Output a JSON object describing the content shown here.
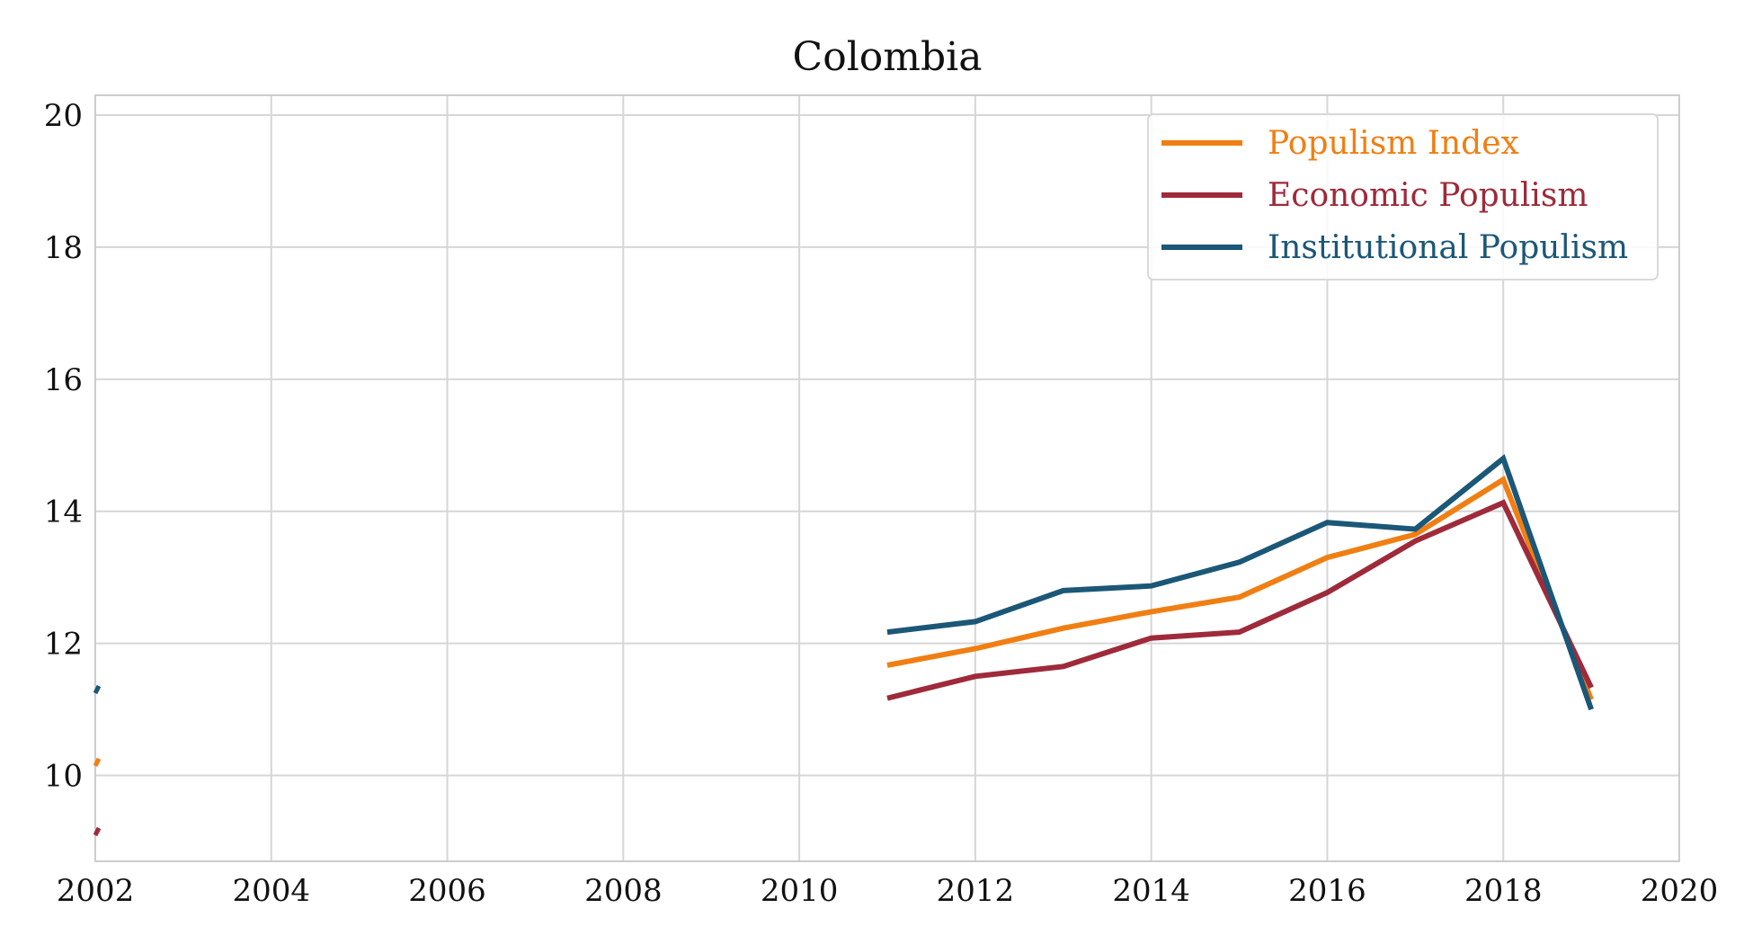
{
  "chart_data": {
    "type": "line",
    "title": "Colombia",
    "xlabel": "",
    "ylabel": "",
    "xlim": [
      2002,
      2020
    ],
    "ylim": [
      8.7,
      20.3
    ],
    "xticks": [
      "2002",
      "2004",
      "2006",
      "2008",
      "2010",
      "2012",
      "2014",
      "2016",
      "2018",
      "2020"
    ],
    "yticks": [
      "10",
      "12",
      "14",
      "16",
      "18",
      "20"
    ],
    "grid": true,
    "legend_position": "top-right",
    "series": [
      {
        "name": "Populism Index",
        "color": "#f07f13",
        "points": [
          [
            2002,
            10.2
          ],
          [
            2011,
            11.67
          ],
          [
            2012,
            11.92
          ],
          [
            2013,
            12.23
          ],
          [
            2014,
            12.48
          ],
          [
            2015,
            12.7
          ],
          [
            2016,
            13.3
          ],
          [
            2017,
            13.65
          ],
          [
            2018,
            14.48
          ],
          [
            2019,
            11.15
          ]
        ]
      },
      {
        "name": "Economic Populism",
        "color": "#9e2a3a",
        "points": [
          [
            2002,
            9.15
          ],
          [
            2011,
            11.17
          ],
          [
            2012,
            11.5
          ],
          [
            2013,
            11.65
          ],
          [
            2014,
            12.08
          ],
          [
            2015,
            12.17
          ],
          [
            2016,
            12.77
          ],
          [
            2017,
            13.55
          ],
          [
            2018,
            14.13
          ],
          [
            2019,
            11.33
          ]
        ]
      },
      {
        "name": "Institutional Populism",
        "color": "#1b5777",
        "points": [
          [
            2002,
            11.3
          ],
          [
            2011,
            12.17
          ],
          [
            2012,
            12.33
          ],
          [
            2013,
            12.8
          ],
          [
            2014,
            12.87
          ],
          [
            2015,
            13.23
          ],
          [
            2016,
            13.83
          ],
          [
            2017,
            13.73
          ],
          [
            2018,
            14.8
          ],
          [
            2019,
            11.0
          ]
        ]
      }
    ]
  }
}
